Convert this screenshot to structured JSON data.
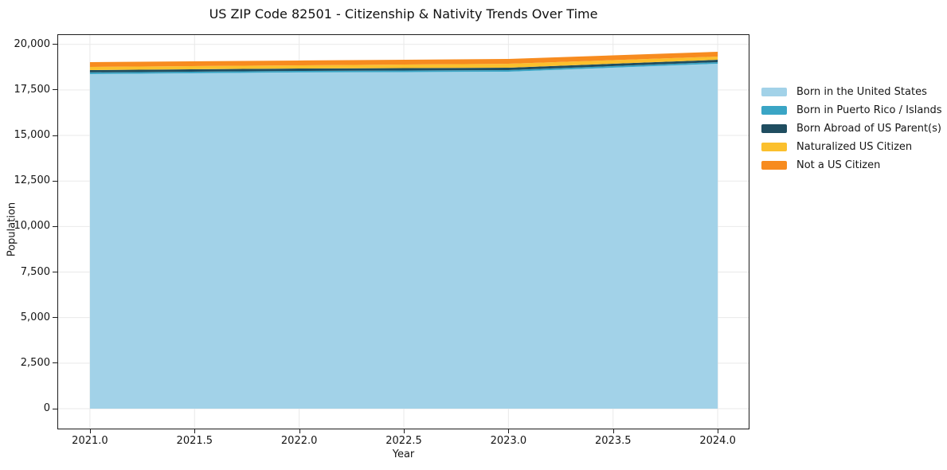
{
  "chart_data": {
    "type": "area",
    "stacked": true,
    "title": "US ZIP Code 82501 - Citizenship & Nativity Trends Over Time",
    "xlabel": "Year",
    "ylabel": "Population",
    "x": [
      2021,
      2022,
      2023,
      2024
    ],
    "series": [
      {
        "name": "Born in the United States",
        "color": "#a2d2e8",
        "values": [
          18370,
          18460,
          18500,
          18940
        ]
      },
      {
        "name": "Born in Puerto Rico / Islands",
        "color": "#3aa5c5",
        "values": [
          90,
          85,
          90,
          85
        ]
      },
      {
        "name": "Born Abroad of US Parent(s)",
        "color": "#1f4d60",
        "values": [
          130,
          130,
          130,
          130
        ]
      },
      {
        "name": "Naturalized US Citizen",
        "color": "#fbc02d",
        "values": [
          175,
          175,
          215,
          175
        ]
      },
      {
        "name": "Not a US Citizen",
        "color": "#f78b1f",
        "values": [
          260,
          265,
          265,
          265
        ]
      }
    ],
    "totals": [
      19025,
      19115,
      19200,
      19595
    ],
    "x_ticks": [
      2021.0,
      2021.5,
      2022.0,
      2022.5,
      2023.0,
      2023.5,
      2024.0
    ],
    "x_tick_labels": [
      "2021.0",
      "2021.5",
      "2022.0",
      "2022.5",
      "2023.0",
      "2023.5",
      "2024.0"
    ],
    "y_ticks": [
      0,
      2500,
      5000,
      7500,
      10000,
      12500,
      15000,
      17500,
      20000
    ],
    "y_tick_labels": [
      "0",
      "2,500",
      "5,000",
      "7,500",
      "10,000",
      "12,500",
      "15,000",
      "17,500",
      "20,000"
    ],
    "xlim": [
      2020.848,
      2024.148
    ],
    "ylim": [
      -1093,
      20512
    ],
    "grid": true,
    "grid_color": "#e9e9e9",
    "spine_color": "#1c1c1c",
    "text_color": "#151515",
    "background_color": "#ffffff",
    "legend_position": "right"
  }
}
